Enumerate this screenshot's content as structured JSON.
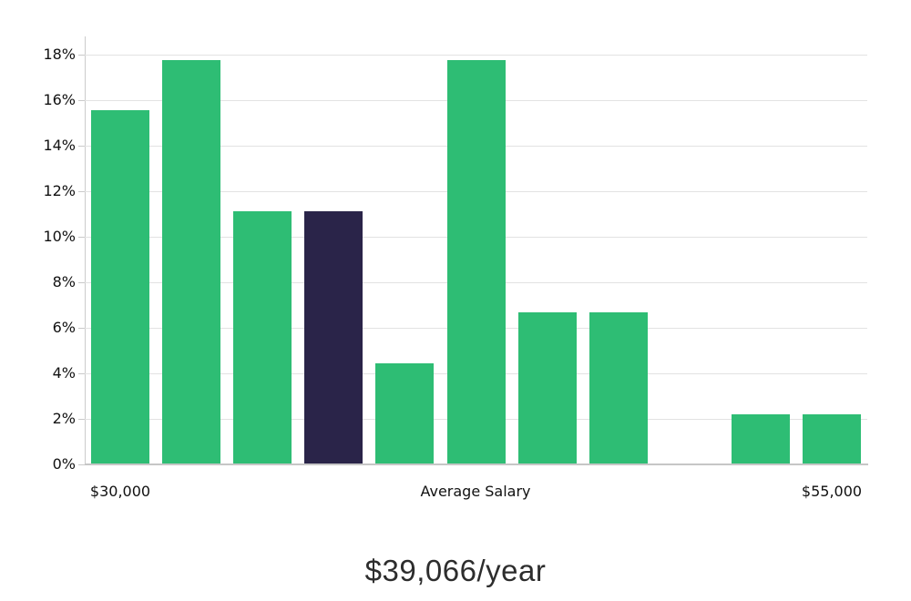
{
  "chart_data": {
    "type": "bar",
    "title": "$39,066/year",
    "values": [
      15.56,
      17.78,
      11.11,
      11.11,
      4.44,
      17.78,
      6.67,
      6.67,
      0.05,
      2.22,
      2.22
    ],
    "highlight_index": 3,
    "bar_color": "#2ebd74",
    "highlight_color": "#2a2449",
    "ylim": [
      0,
      18.8
    ],
    "ytick_values": [
      0,
      2,
      4,
      6,
      8,
      10,
      12,
      14,
      16,
      18
    ],
    "ytick_labels": [
      "0%",
      "2%",
      "4%",
      "6%",
      "8%",
      "10%",
      "12%",
      "14%",
      "16%",
      "18%"
    ],
    "xtick_labels": {
      "left": "$30,000",
      "center": "Average Salary",
      "right": "$55,000"
    },
    "grid": true,
    "legend": "none",
    "xlabel": "",
    "ylabel": ""
  }
}
